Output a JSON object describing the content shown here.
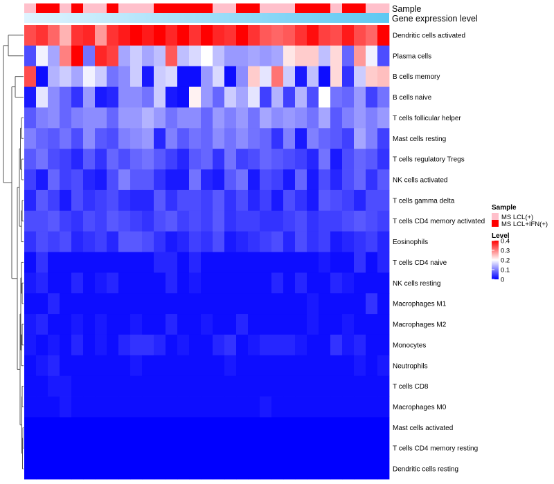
{
  "chart_data": {
    "type": "heatmap",
    "annotation_tracks": [
      "Sample",
      "Gene expression level"
    ],
    "rows": [
      "Dendritic cells activated",
      "Plasma cells",
      "B cells memory",
      "B cells naive",
      "T cells follicular helper",
      "Mast cells resting",
      "T cells regulatory  Tregs",
      "NK cells activated",
      "T cells gamma delta",
      "T cells CD4 memory activated",
      "Eosinophils",
      "T cells CD4 naive",
      "NK cells resting",
      "Macrophages M1",
      "Macrophages M2",
      "Monocytes",
      "Neutrophils",
      "T cells CD8",
      "Macrophages M0",
      "Mast cells activated",
      "T cells CD4 memory resting",
      "Dendritic cells resting"
    ],
    "sample_groups": [
      "MS LCL(+)",
      "MS LCL+IFN(+)",
      "MS LCL+IFN(+)",
      "MS LCL(+)",
      "MS LCL+IFN(+)",
      "MS LCL(+)",
      "MS LCL(+)",
      "MS LCL+IFN(+)",
      "MS LCL(+)",
      "MS LCL(+)",
      "MS LCL(+)",
      "MS LCL+IFN(+)",
      "MS LCL+IFN(+)",
      "MS LCL+IFN(+)",
      "MS LCL+IFN(+)",
      "MS LCL+IFN(+)",
      "MS LCL(+)",
      "MS LCL(+)",
      "MS LCL+IFN(+)",
      "MS LCL+IFN(+)",
      "MS LCL(+)",
      "MS LCL(+)",
      "MS LCL(+)",
      "MS LCL+IFN(+)",
      "MS LCL+IFN(+)",
      "MS LCL+IFN(+)",
      "MS LCL(+)",
      "MS LCL+IFN(+)",
      "MS LCL+IFN(+)",
      "MS LCL(+)",
      "MS LCL(+)"
    ],
    "expression_gradient": [
      "#e0f4ff",
      "#5ec8f2"
    ],
    "values": [
      [
        0.34,
        0.36,
        0.32,
        0.26,
        0.36,
        0.37,
        0.28,
        0.36,
        0.38,
        0.4,
        0.38,
        0.4,
        0.37,
        0.4,
        0.36,
        0.4,
        0.37,
        0.36,
        0.4,
        0.36,
        0.33,
        0.32,
        0.33,
        0.36,
        0.39,
        0.35,
        0.34,
        0.38,
        0.34,
        0.32,
        0.4
      ],
      [
        0.06,
        0.19,
        0.13,
        0.3,
        0.4,
        0.09,
        0.37,
        0.35,
        0.13,
        0.16,
        0.13,
        0.15,
        0.33,
        0.15,
        0.17,
        0.2,
        0.15,
        0.12,
        0.12,
        0.13,
        0.12,
        0.13,
        0.22,
        0.24,
        0.24,
        0.15,
        0.23,
        0.08,
        0.28,
        0.19,
        0.06
      ],
      [
        0.34,
        0.01,
        0.14,
        0.16,
        0.13,
        0.19,
        0.16,
        0.09,
        0.11,
        0.16,
        0.02,
        0.16,
        0.17,
        0.01,
        0.01,
        0.12,
        0.17,
        0.01,
        0.11,
        0.24,
        0.18,
        0.31,
        0.16,
        0.02,
        0.15,
        0.01,
        0.23,
        0.04,
        0.16,
        0.24,
        0.25
      ],
      [
        0.02,
        0.18,
        0.11,
        0.08,
        0.04,
        0.12,
        0.02,
        0.03,
        0.11,
        0.11,
        0.09,
        0.16,
        0.02,
        0.01,
        0.21,
        0.12,
        0.08,
        0.16,
        0.13,
        0.18,
        0.05,
        0.14,
        0.05,
        0.14,
        0.06,
        0.2,
        0.09,
        0.08,
        0.12,
        0.05,
        0.09
      ],
      [
        0.07,
        0.1,
        0.11,
        0.08,
        0.1,
        0.11,
        0.11,
        0.08,
        0.12,
        0.12,
        0.14,
        0.12,
        0.09,
        0.11,
        0.11,
        0.08,
        0.12,
        0.1,
        0.12,
        0.09,
        0.13,
        0.11,
        0.12,
        0.11,
        0.09,
        0.13,
        0.07,
        0.1,
        0.12,
        0.1,
        0.12
      ],
      [
        0.1,
        0.08,
        0.07,
        0.09,
        0.06,
        0.11,
        0.07,
        0.06,
        0.1,
        0.11,
        0.12,
        0.03,
        0.1,
        0.07,
        0.09,
        0.08,
        0.11,
        0.09,
        0.11,
        0.09,
        0.08,
        0.04,
        0.1,
        0.02,
        0.1,
        0.08,
        0.07,
        0.05,
        0.13,
        0.1,
        0.05
      ],
      [
        0.07,
        0.09,
        0.06,
        0.05,
        0.03,
        0.07,
        0.04,
        0.08,
        0.06,
        0.08,
        0.09,
        0.07,
        0.05,
        0.03,
        0.07,
        0.08,
        0.04,
        0.09,
        0.05,
        0.06,
        0.08,
        0.07,
        0.06,
        0.05,
        0.03,
        0.09,
        0.02,
        0.06,
        0.08,
        0.07,
        0.04
      ],
      [
        0.05,
        0.02,
        0.08,
        0.05,
        0.06,
        0.03,
        0.02,
        0.06,
        0.1,
        0.07,
        0.07,
        0.04,
        0.02,
        0.02,
        0.09,
        0.03,
        0.02,
        0.07,
        0.09,
        0.02,
        0.06,
        0.05,
        0.02,
        0.08,
        0.02,
        0.06,
        0.03,
        0.06,
        0.08,
        0.04,
        0.07
      ],
      [
        0.03,
        0.07,
        0.05,
        0.02,
        0.06,
        0.04,
        0.05,
        0.06,
        0.04,
        0.03,
        0.03,
        0.07,
        0.04,
        0.06,
        0.06,
        0.05,
        0.07,
        0.04,
        0.06,
        0.03,
        0.05,
        0.02,
        0.06,
        0.04,
        0.02,
        0.07,
        0.06,
        0.05,
        0.03,
        0.06,
        0.06
      ],
      [
        0.06,
        0.06,
        0.07,
        0.05,
        0.04,
        0.06,
        0.05,
        0.07,
        0.06,
        0.05,
        0.04,
        0.06,
        0.07,
        0.05,
        0.06,
        0.05,
        0.07,
        0.04,
        0.05,
        0.05,
        0.04,
        0.04,
        0.05,
        0.06,
        0.04,
        0.05,
        0.05,
        0.06,
        0.07,
        0.06,
        0.05
      ],
      [
        0.04,
        0.06,
        0.05,
        0.06,
        0.03,
        0.04,
        0.05,
        0.03,
        0.07,
        0.07,
        0.06,
        0.04,
        0.02,
        0.03,
        0.05,
        0.04,
        0.06,
        0.02,
        0.03,
        0.04,
        0.05,
        0.06,
        0.03,
        0.06,
        0.04,
        0.05,
        0.02,
        0.03,
        0.04,
        0.05,
        0.03
      ],
      [
        0.01,
        0.04,
        0.01,
        0.01,
        0.01,
        0.01,
        0.01,
        0.01,
        0.01,
        0.01,
        0.01,
        0.03,
        0.03,
        0.01,
        0.03,
        0.01,
        0.01,
        0.01,
        0.01,
        0.01,
        0.01,
        0.01,
        0.01,
        0.01,
        0.01,
        0.02,
        0.01,
        0.01,
        0.04,
        0.01,
        0.03
      ],
      [
        0.02,
        0.03,
        0.01,
        0.01,
        0.03,
        0.01,
        0.02,
        0.03,
        0.01,
        0.01,
        0.01,
        0.01,
        0.03,
        0.01,
        0.02,
        0.01,
        0.01,
        0.01,
        0.01,
        0.01,
        0.01,
        0.03,
        0.01,
        0.03,
        0.01,
        0.01,
        0.03,
        0.02,
        0.01,
        0.01,
        0.01
      ],
      [
        0.01,
        0.01,
        0.03,
        0.01,
        0.01,
        0.01,
        0.01,
        0.01,
        0.01,
        0.01,
        0.01,
        0.01,
        0.01,
        0.01,
        0.01,
        0.01,
        0.01,
        0.01,
        0.01,
        0.01,
        0.01,
        0.01,
        0.01,
        0.01,
        0.02,
        0.01,
        0.01,
        0.01,
        0.01,
        0.04,
        0.01
      ],
      [
        0.02,
        0.03,
        0.01,
        0.01,
        0.02,
        0.01,
        0.02,
        0.01,
        0.01,
        0.02,
        0.01,
        0.01,
        0.03,
        0.01,
        0.01,
        0.02,
        0.01,
        0.01,
        0.03,
        0.01,
        0.01,
        0.01,
        0.01,
        0.01,
        0.02,
        0.01,
        0.01,
        0.02,
        0.01,
        0.01,
        0.01
      ],
      [
        0.02,
        0.01,
        0.02,
        0.01,
        0.03,
        0.01,
        0.02,
        0.01,
        0.03,
        0.04,
        0.04,
        0.03,
        0.01,
        0.02,
        0.01,
        0.01,
        0.03,
        0.04,
        0.01,
        0.02,
        0.03,
        0.03,
        0.03,
        0.02,
        0.01,
        0.01,
        0.04,
        0.02,
        0.03,
        0.01,
        0.01
      ],
      [
        0.01,
        0.02,
        0.03,
        0.01,
        0.01,
        0.01,
        0.01,
        0.01,
        0.01,
        0.02,
        0.01,
        0.01,
        0.01,
        0.01,
        0.01,
        0.01,
        0.01,
        0.02,
        0.01,
        0.01,
        0.01,
        0.01,
        0.01,
        0.01,
        0.01,
        0.01,
        0.01,
        0.01,
        0.02,
        0.01,
        0.02
      ],
      [
        0.01,
        0.01,
        0.02,
        0.02,
        0.01,
        0.01,
        0.01,
        0.01,
        0.01,
        0.01,
        0.01,
        0.01,
        0.01,
        0.01,
        0.01,
        0.01,
        0.01,
        0.01,
        0.01,
        0.01,
        0.01,
        0.01,
        0.01,
        0.01,
        0.01,
        0.01,
        0.01,
        0.01,
        0.01,
        0.01,
        0.01
      ],
      [
        0.01,
        0.01,
        0.01,
        0.02,
        0.01,
        0.01,
        0.01,
        0.01,
        0.01,
        0.01,
        0.01,
        0.01,
        0.01,
        0.01,
        0.01,
        0.01,
        0.01,
        0.01,
        0.01,
        0.01,
        0.02,
        0.01,
        0.01,
        0.01,
        0.01,
        0.01,
        0.01,
        0.01,
        0.01,
        0.01,
        0.01
      ],
      [
        0.0,
        0.0,
        0.0,
        0.0,
        0.0,
        0.0,
        0.0,
        0.0,
        0.0,
        0.0,
        0.0,
        0.0,
        0.0,
        0.0,
        0.0,
        0.0,
        0.0,
        0.0,
        0.0,
        0.0,
        0.0,
        0.0,
        0.0,
        0.0,
        0.0,
        0.0,
        0.0,
        0.0,
        0.0,
        0.0,
        0.0
      ],
      [
        0.0,
        0.0,
        0.0,
        0.0,
        0.0,
        0.0,
        0.0,
        0.0,
        0.0,
        0.0,
        0.0,
        0.0,
        0.0,
        0.0,
        0.0,
        0.0,
        0.0,
        0.0,
        0.0,
        0.0,
        0.0,
        0.0,
        0.0,
        0.0,
        0.0,
        0.0,
        0.0,
        0.0,
        0.0,
        0.0,
        0.0
      ],
      [
        0.0,
        0.0,
        0.0,
        0.0,
        0.0,
        0.0,
        0.0,
        0.0,
        0.0,
        0.0,
        0.0,
        0.0,
        0.0,
        0.0,
        0.0,
        0.0,
        0.0,
        0.0,
        0.0,
        0.0,
        0.0,
        0.0,
        0.0,
        0.0,
        0.0,
        0.0,
        0.0,
        0.0,
        0.0,
        0.0,
        0.0
      ]
    ],
    "color_scale": {
      "min": 0,
      "max": 0.4,
      "low": "#0000ff",
      "mid": "#ffffff",
      "high": "#ff0000",
      "mid_value": 0.2
    },
    "sample_colors": {
      "MS LCL(+)": "#ffc0cb",
      "MS LCL+IFN(+)": "#ff0000"
    },
    "legend": {
      "sample_title": "Sample",
      "sample_entries": [
        "MS LCL(+)",
        "MS LCL+IFN(+)"
      ],
      "level_title": "Level",
      "level_ticks": [
        "0.4",
        "0.3",
        "0.2",
        "0.1",
        "0"
      ],
      "level_tick_values": [
        0.4,
        0.3,
        0.2,
        0.1,
        0
      ]
    },
    "dendrogram": "row"
  }
}
